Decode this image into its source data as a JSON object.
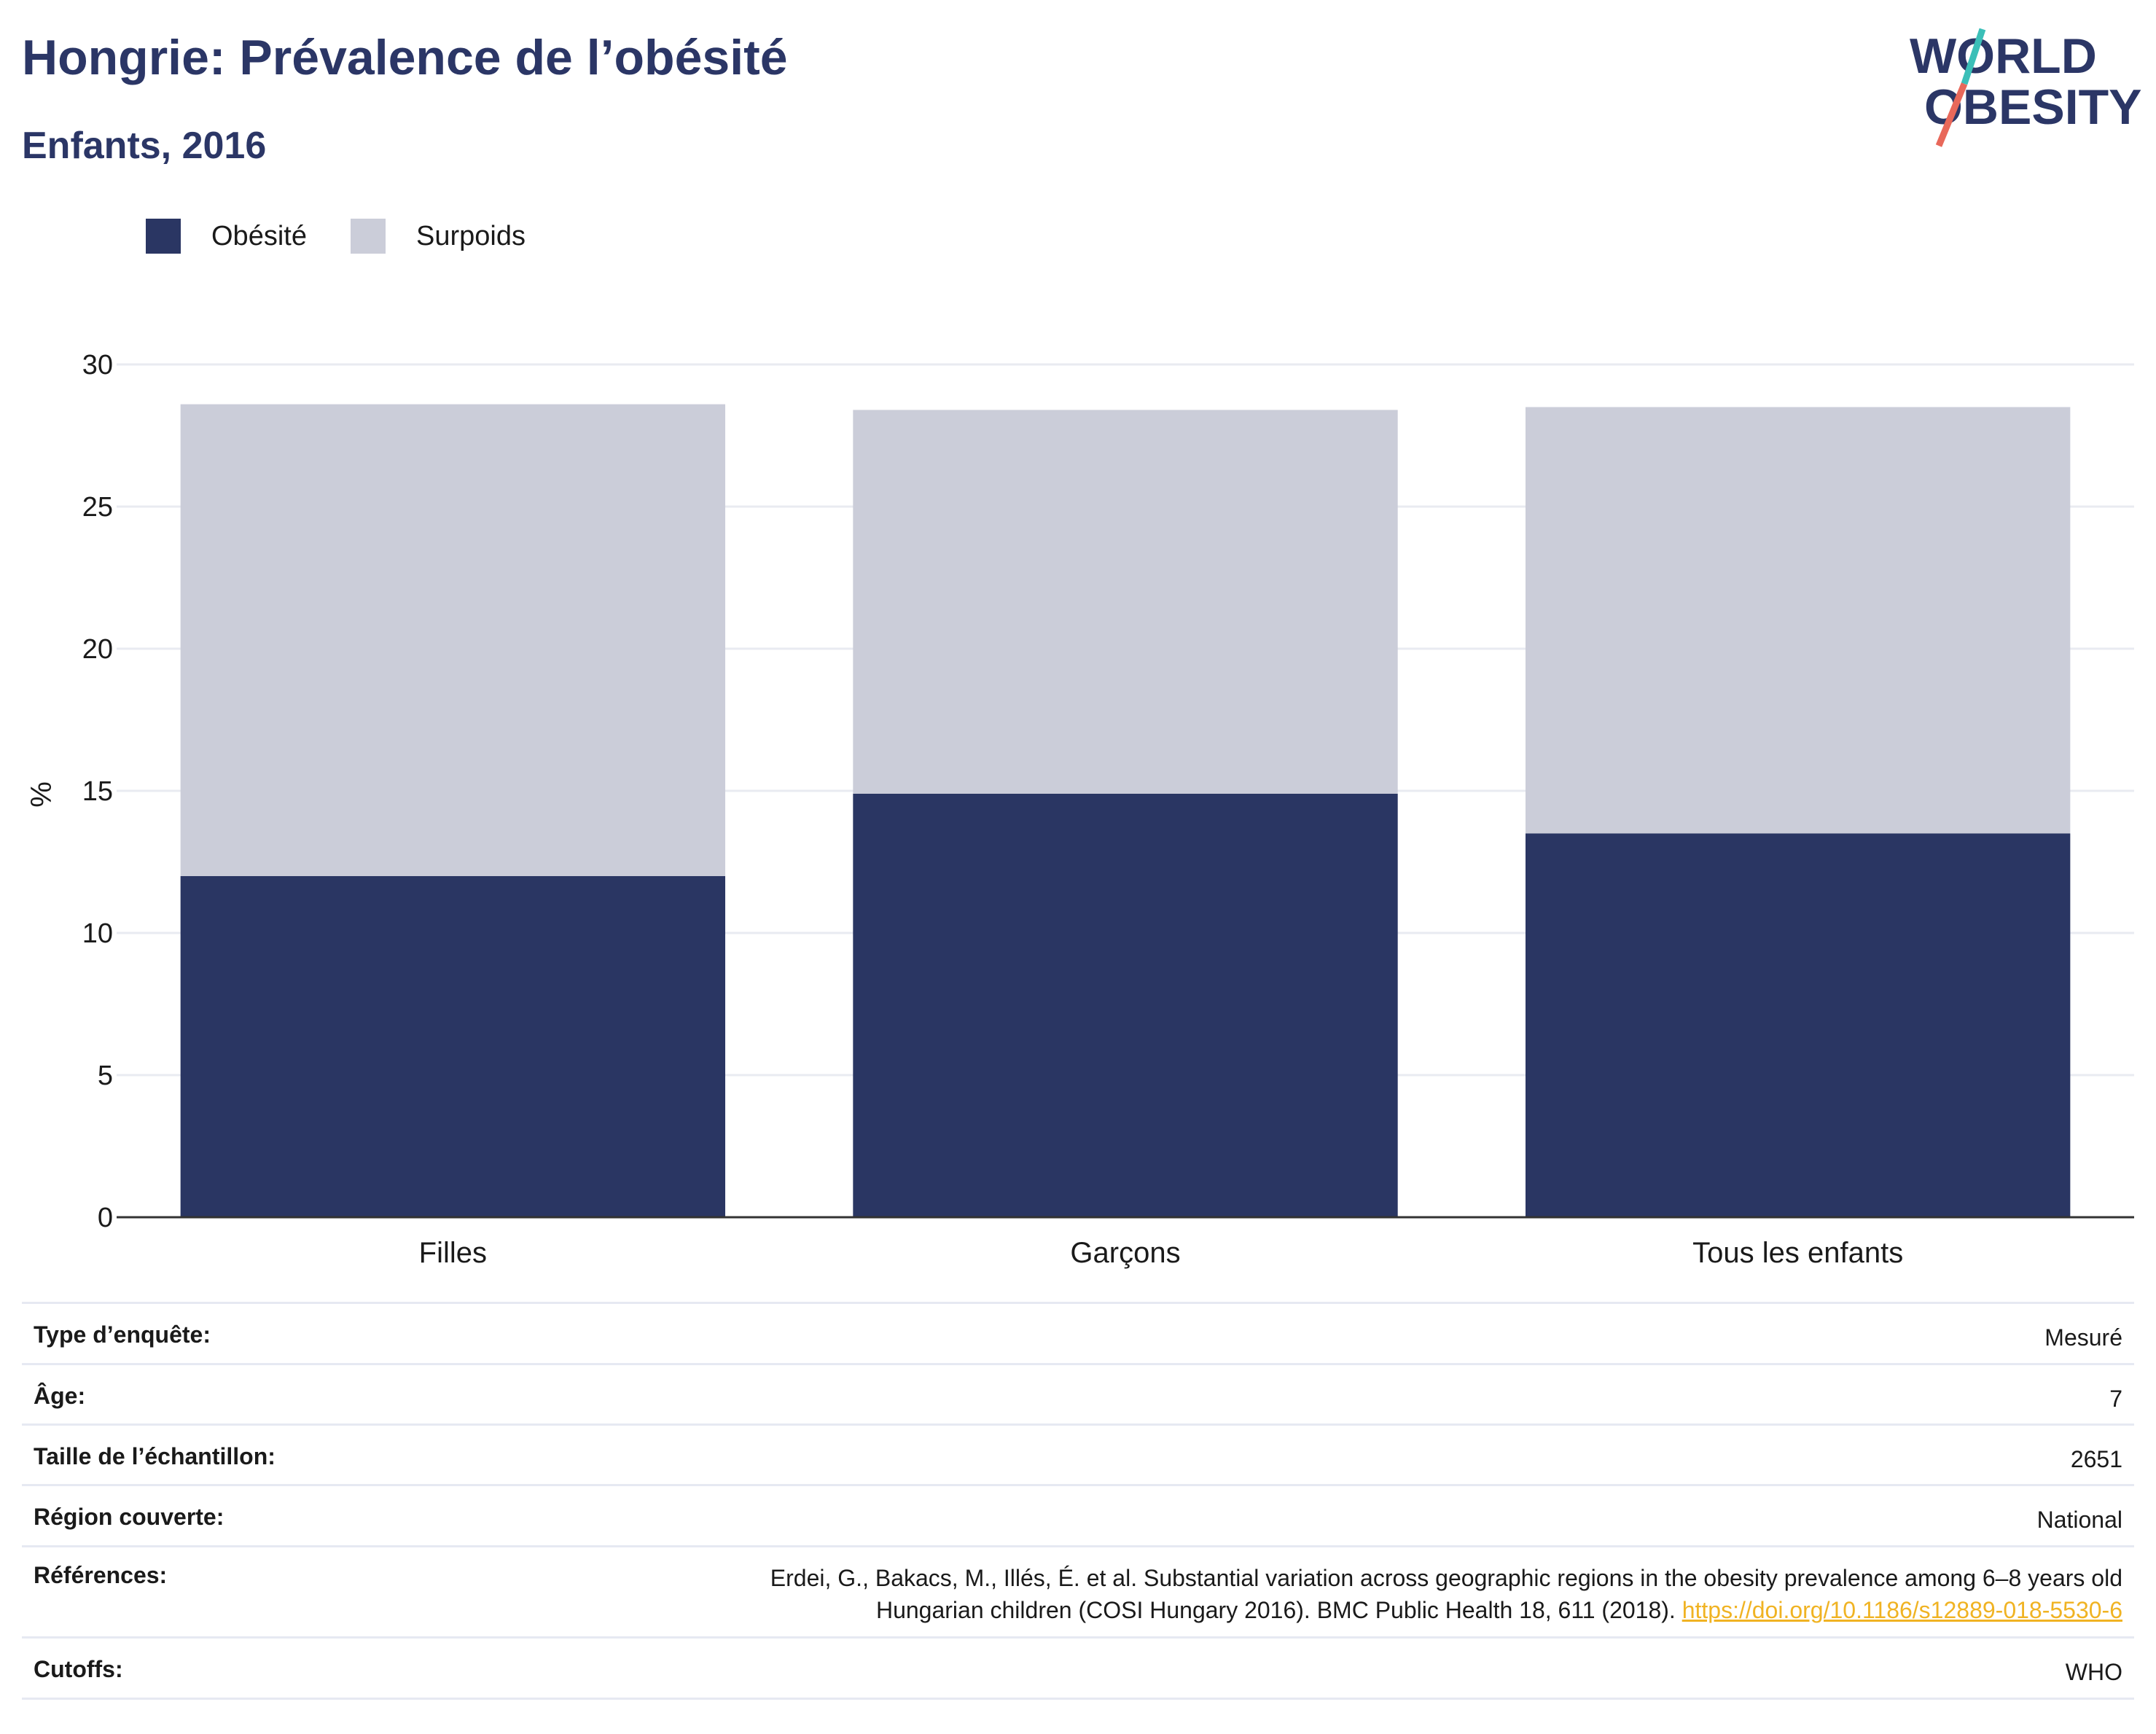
{
  "header": {
    "title": "Hongrie: Prévalence de l’obésité",
    "subtitle": "Enfants, 2016"
  },
  "logo": {
    "line1": "WORLD",
    "line2": "OBESITY"
  },
  "legend": [
    {
      "label": "Obésité",
      "color": "#2a3663"
    },
    {
      "label": "Surpoids",
      "color": "#cbcdd9"
    }
  ],
  "chart_data": {
    "type": "bar",
    "stacked": true,
    "categories": [
      "Filles",
      "Garçons",
      "Tous les enfants"
    ],
    "series": [
      {
        "name": "Obésité",
        "values": [
          12.0,
          14.9,
          13.5
        ],
        "color": "#2a3663"
      },
      {
        "name": "Surpoids",
        "values": [
          16.6,
          13.5,
          15.0
        ],
        "color": "#cbcdd9"
      }
    ],
    "ylabel": "%",
    "xlabel": "",
    "ylim": [
      0,
      30
    ],
    "yticks": [
      0,
      5,
      10,
      15,
      20,
      25,
      30
    ],
    "grid": true,
    "legend_position": "top-left"
  },
  "info": [
    {
      "label": "Type d’enquête:",
      "value": "Mesuré"
    },
    {
      "label": "Âge:",
      "value": "7"
    },
    {
      "label": "Taille de l’échantillon:",
      "value": "2651"
    },
    {
      "label": "Région couverte:",
      "value": "National"
    },
    {
      "label": "Références:",
      "value_line1": "Erdei, G., Bakacs, M., Illés, É. et al. Substantial variation across geographic regions in the obesity prevalence among 6–8 years old",
      "value_line2": "Hungarian children (COSI Hungary 2016). BMC Public Health 18, 611 (2018).",
      "link": "https://doi.org/10.1186/s12889-018-5530-6"
    },
    {
      "label": "Cutoffs:",
      "value": "WHO"
    }
  ]
}
